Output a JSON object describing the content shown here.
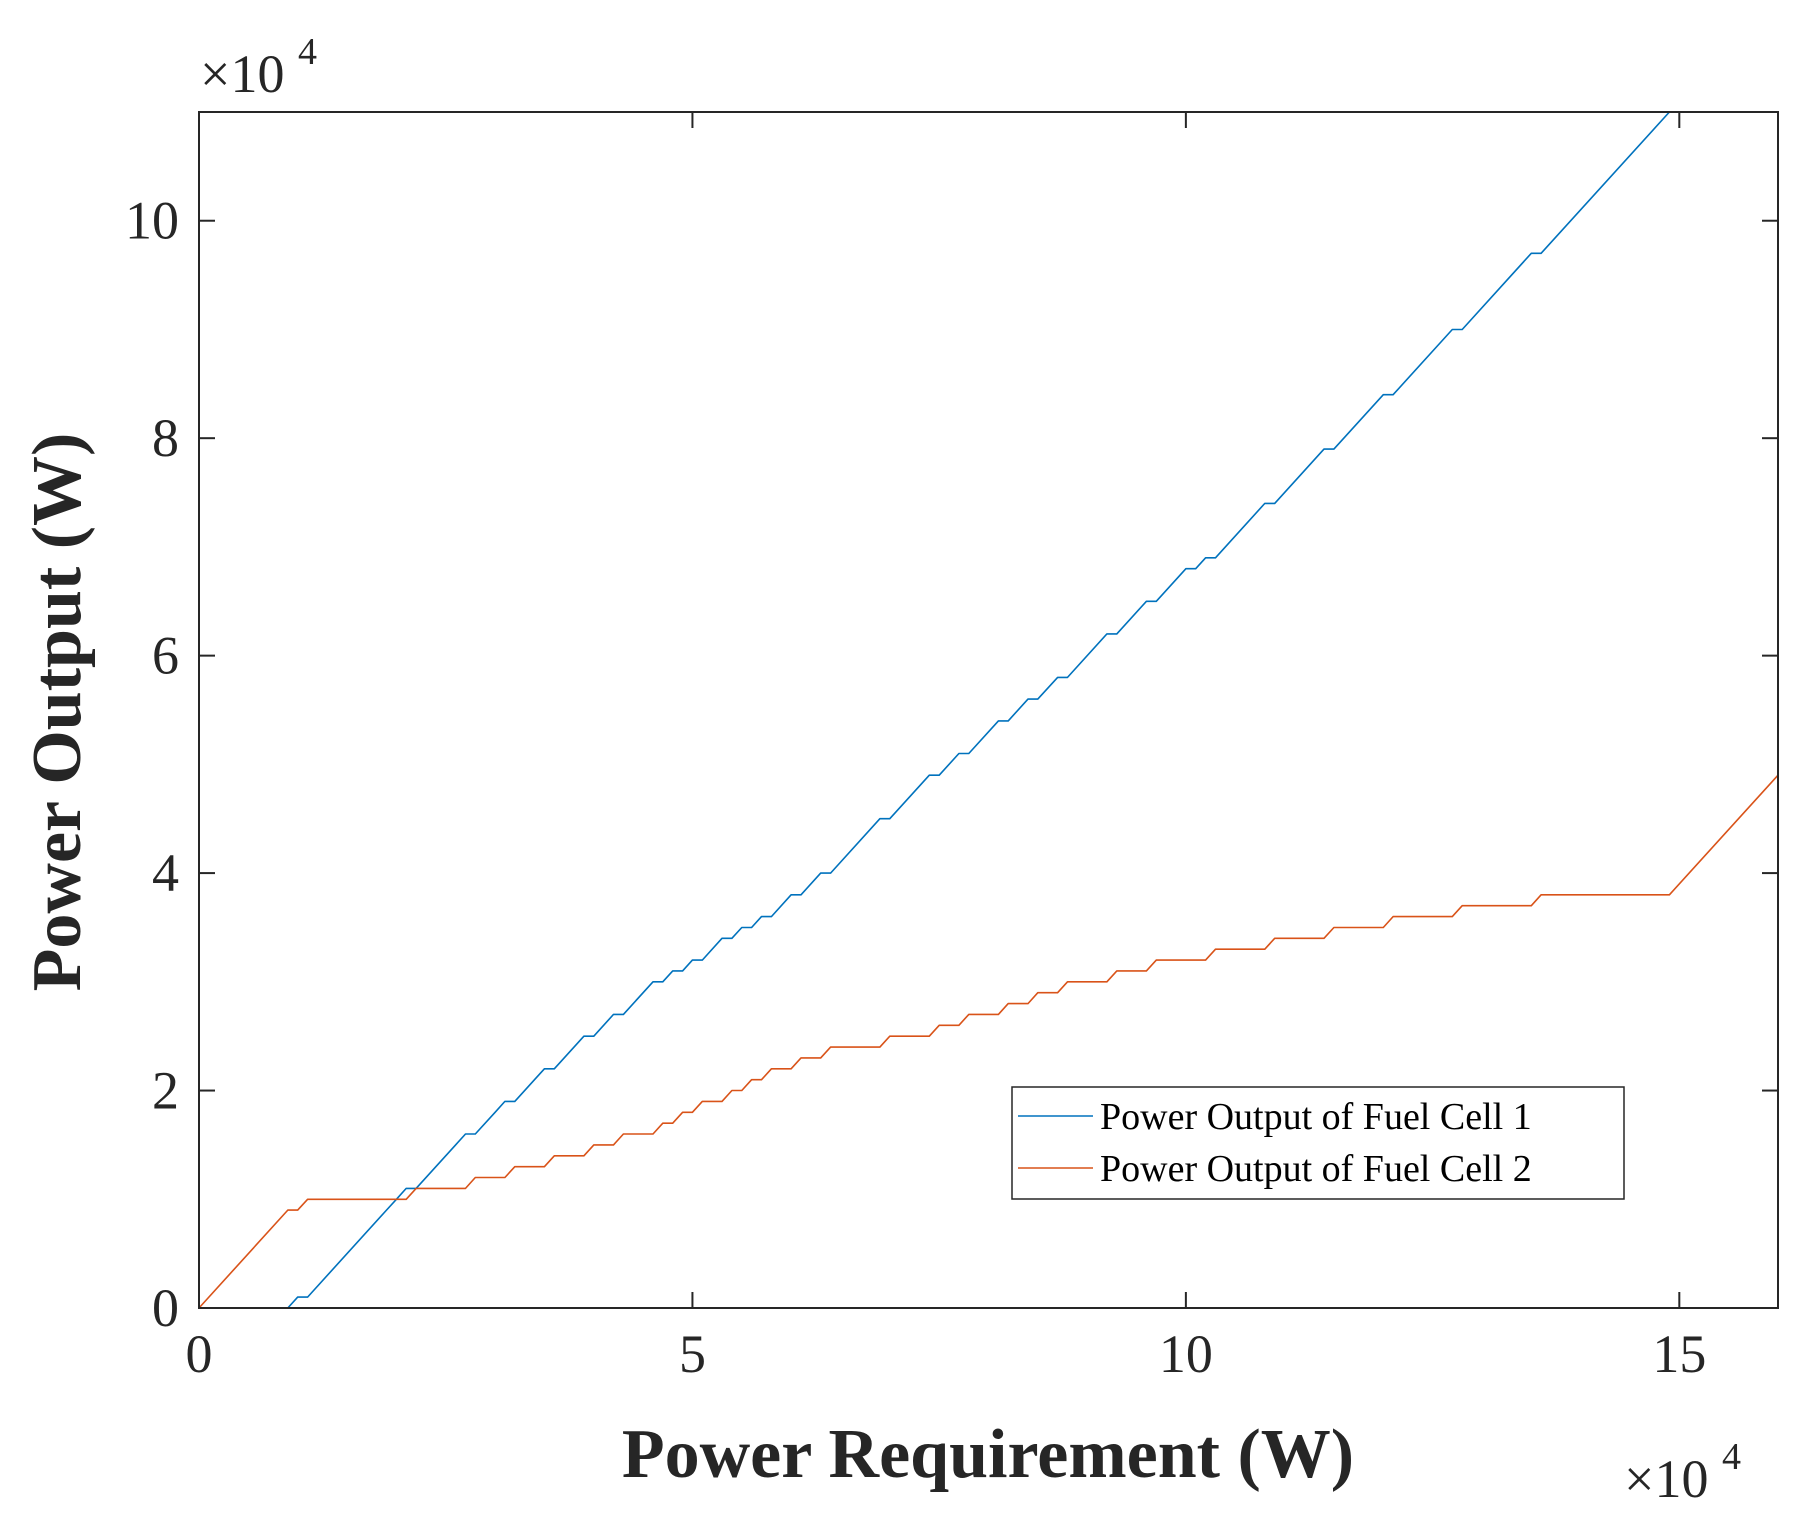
{
  "chart_data": {
    "type": "line",
    "xlabel": "Power Requirement (W)",
    "ylabel": "Power Output (W)",
    "x_exponent_label": "×10",
    "y_exponent_label": "×10",
    "exponent_power": "4",
    "xlim": [
      0,
      160000
    ],
    "ylim": [
      0,
      110000
    ],
    "xticks": [
      0,
      50000,
      100000,
      150000
    ],
    "xtick_labels": [
      "0",
      "5",
      "10",
      "15"
    ],
    "yticks": [
      0,
      20000,
      40000,
      60000,
      80000,
      100000
    ],
    "ytick_labels": [
      "0",
      "2",
      "4",
      "6",
      "8",
      "10"
    ],
    "grid": false,
    "box": true,
    "legend_position": "lower-right",
    "series": [
      {
        "name": "Power Output of Fuel Cell 1",
        "color": "#0072BD",
        "points": [
          [
            0,
            0
          ],
          [
            9000,
            0
          ],
          [
            10000,
            1000
          ],
          [
            11000,
            1000
          ],
          [
            19000,
            9000
          ],
          [
            20000,
            10000
          ],
          [
            21000,
            11000
          ],
          [
            22000,
            11000
          ],
          [
            26000,
            15000
          ],
          [
            27000,
            16000
          ],
          [
            28000,
            16000
          ],
          [
            30000,
            18000
          ],
          [
            31000,
            19000
          ],
          [
            32000,
            19000
          ],
          [
            34000,
            21000
          ],
          [
            35000,
            22000
          ],
          [
            36000,
            22000
          ],
          [
            39000,
            25000
          ],
          [
            40000,
            25000
          ],
          [
            42000,
            27000
          ],
          [
            43000,
            27000
          ],
          [
            46000,
            30000
          ],
          [
            47000,
            30000
          ],
          [
            48000,
            31000
          ],
          [
            49000,
            31000
          ],
          [
            50000,
            32000
          ],
          [
            51000,
            32000
          ],
          [
            53000,
            34000
          ],
          [
            54000,
            34000
          ],
          [
            55000,
            35000
          ],
          [
            56000,
            35000
          ],
          [
            57000,
            36000
          ],
          [
            58000,
            36000
          ],
          [
            60000,
            38000
          ],
          [
            61000,
            38000
          ],
          [
            63000,
            40000
          ],
          [
            64000,
            40000
          ],
          [
            69000,
            45000
          ],
          [
            70000,
            45000
          ],
          [
            74000,
            49000
          ],
          [
            75000,
            49000
          ],
          [
            77000,
            51000
          ],
          [
            78000,
            51000
          ],
          [
            81000,
            54000
          ],
          [
            82000,
            54000
          ],
          [
            84000,
            56000
          ],
          [
            85000,
            56000
          ],
          [
            87000,
            58000
          ],
          [
            88000,
            58000
          ],
          [
            92000,
            62000
          ],
          [
            93000,
            62000
          ],
          [
            96000,
            65000
          ],
          [
            97000,
            65000
          ],
          [
            100000,
            68000
          ],
          [
            101000,
            68000
          ],
          [
            102000,
            69000
          ],
          [
            103000,
            69000
          ],
          [
            108000,
            74000
          ],
          [
            109000,
            74000
          ],
          [
            114000,
            79000
          ],
          [
            115000,
            79000
          ],
          [
            120000,
            84000
          ],
          [
            121000,
            84000
          ],
          [
            127000,
            90000
          ],
          [
            128000,
            90000
          ],
          [
            135000,
            97000
          ],
          [
            136000,
            97000
          ],
          [
            149000,
            110000
          ],
          [
            160000,
            110000
          ]
        ]
      },
      {
        "name": "Power Output of Fuel Cell 2",
        "color": "#D95319",
        "points": [
          [
            0,
            0
          ],
          [
            9000,
            9000
          ],
          [
            10000,
            9000
          ],
          [
            11000,
            10000
          ],
          [
            21000,
            10000
          ],
          [
            22000,
            11000
          ],
          [
            27000,
            11000
          ],
          [
            28000,
            12000
          ],
          [
            31000,
            12000
          ],
          [
            32000,
            13000
          ],
          [
            35000,
            13000
          ],
          [
            36000,
            14000
          ],
          [
            39000,
            14000
          ],
          [
            40000,
            15000
          ],
          [
            42000,
            15000
          ],
          [
            43000,
            16000
          ],
          [
            46000,
            16000
          ],
          [
            47000,
            17000
          ],
          [
            48000,
            17000
          ],
          [
            49000,
            18000
          ],
          [
            50000,
            18000
          ],
          [
            51000,
            19000
          ],
          [
            53000,
            19000
          ],
          [
            54000,
            20000
          ],
          [
            55000,
            20000
          ],
          [
            56000,
            21000
          ],
          [
            57000,
            21000
          ],
          [
            58000,
            22000
          ],
          [
            60000,
            22000
          ],
          [
            61000,
            23000
          ],
          [
            63000,
            23000
          ],
          [
            64000,
            24000
          ],
          [
            69000,
            24000
          ],
          [
            70000,
            25000
          ],
          [
            74000,
            25000
          ],
          [
            75000,
            26000
          ],
          [
            77000,
            26000
          ],
          [
            78000,
            27000
          ],
          [
            81000,
            27000
          ],
          [
            82000,
            28000
          ],
          [
            84000,
            28000
          ],
          [
            85000,
            29000
          ],
          [
            87000,
            29000
          ],
          [
            88000,
            30000
          ],
          [
            92000,
            30000
          ],
          [
            93000,
            31000
          ],
          [
            96000,
            31000
          ],
          [
            97000,
            32000
          ],
          [
            102000,
            32000
          ],
          [
            103000,
            33000
          ],
          [
            108000,
            33000
          ],
          [
            109000,
            34000
          ],
          [
            114000,
            34000
          ],
          [
            115000,
            35000
          ],
          [
            120000,
            35000
          ],
          [
            121000,
            36000
          ],
          [
            127000,
            36000
          ],
          [
            128000,
            37000
          ],
          [
            135000,
            37000
          ],
          [
            136000,
            38000
          ],
          [
            149000,
            38000
          ],
          [
            160000,
            49000
          ]
        ]
      }
    ]
  }
}
